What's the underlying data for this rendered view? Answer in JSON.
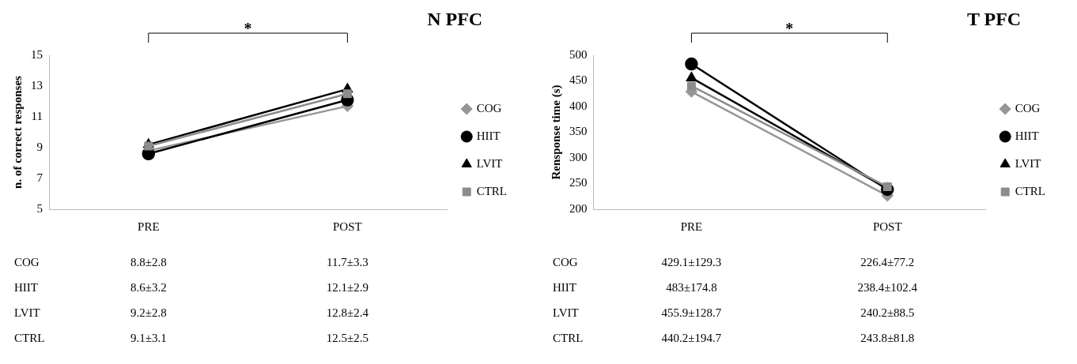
{
  "chart_data": [
    {
      "type": "line",
      "title": "N PFC",
      "ylabel": "n. of correct responses",
      "categories": [
        "PRE",
        "POST"
      ],
      "ylim": [
        5,
        15
      ],
      "yticks": [
        5,
        7,
        9,
        11,
        13,
        15
      ],
      "grid": false,
      "legend": "right",
      "annotations": [
        "*"
      ],
      "series": [
        {
          "name": "COG",
          "color": "#969696",
          "marker": "diamond",
          "values": [
            8.8,
            11.7
          ],
          "value_labels": [
            "8.8±2.8",
            "11.7±3.3"
          ]
        },
        {
          "name": "HIIT",
          "color": "#000000",
          "marker": "circle",
          "values": [
            8.6,
            12.1
          ],
          "value_labels": [
            "8.6±3.2",
            "12.1±2.9"
          ]
        },
        {
          "name": "LVIT",
          "color": "#000000",
          "marker": "triangle",
          "values": [
            9.2,
            12.8
          ],
          "value_labels": [
            "9.2±2.8",
            "12.8±2.4"
          ]
        },
        {
          "name": "CTRL",
          "color": "#8c8c8c",
          "marker": "square",
          "values": [
            9.1,
            12.5
          ],
          "value_labels": [
            "9.1±3.1",
            "12.5±2.5"
          ]
        }
      ]
    },
    {
      "type": "line",
      "title": "T PFC",
      "ylabel": "Rensponse time (s)",
      "categories": [
        "PRE",
        "POST"
      ],
      "ylim": [
        200,
        500
      ],
      "yticks": [
        200,
        250,
        300,
        350,
        400,
        450,
        500
      ],
      "grid": false,
      "legend": "right",
      "annotations": [
        "*"
      ],
      "series": [
        {
          "name": "COG",
          "color": "#969696",
          "marker": "diamond",
          "values": [
            429.1,
            226.4
          ],
          "value_labels": [
            "429.1±129.3",
            "226.4±77.2"
          ]
        },
        {
          "name": "HIIT",
          "color": "#000000",
          "marker": "circle",
          "values": [
            483,
            238.4
          ],
          "value_labels": [
            "483±174.8",
            "238.4±102.4"
          ]
        },
        {
          "name": "LVIT",
          "color": "#000000",
          "marker": "triangle",
          "values": [
            455.9,
            240.2
          ],
          "value_labels": [
            "455.9±128.7",
            "240.2±88.5"
          ]
        },
        {
          "name": "CTRL",
          "color": "#8c8c8c",
          "marker": "square",
          "values": [
            440.2,
            243.8
          ],
          "value_labels": [
            "440.2±194.7",
            "243.8±81.8"
          ]
        }
      ]
    }
  ]
}
